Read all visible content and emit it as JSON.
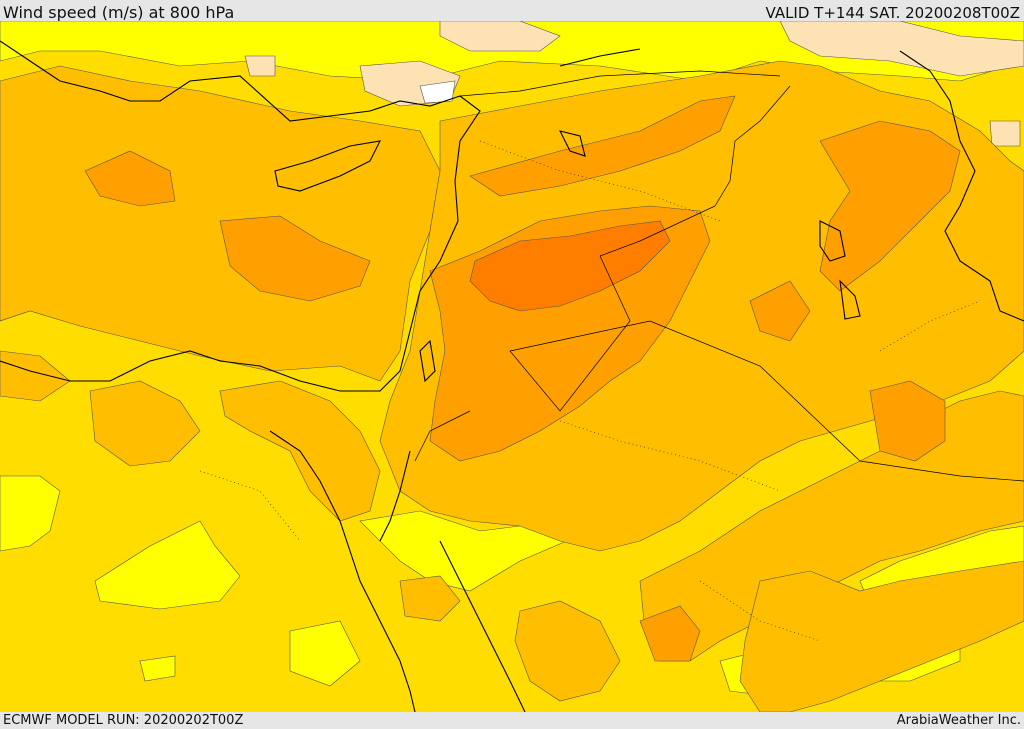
{
  "header": {
    "title": "Wind speed (m/s) at 800 hPa",
    "valid": "VALID T+144 SAT. 20200208T00Z"
  },
  "footer": {
    "model_run": "ECMWF MODEL RUN: 20200202T00Z",
    "credit": "ArabiaWeather Inc."
  },
  "colors": {
    "lowest": "#ffffff",
    "pale": "#fde2b3",
    "yellow": "#ffff00",
    "gold": "#ffdd00",
    "amber": "#ffbf00",
    "orange": "#ffa000",
    "dark_orange": "#ff7e00",
    "coast": "#000000"
  }
}
